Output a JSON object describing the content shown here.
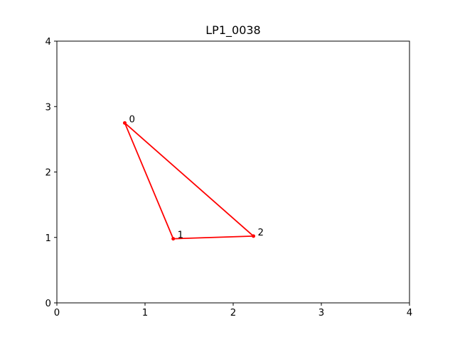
{
  "chart_data": {
    "type": "line",
    "title": "LP1_0038",
    "xlabel": "",
    "ylabel": "",
    "xlim": [
      0,
      4
    ],
    "ylim": [
      0,
      4
    ],
    "xticks": [
      "0",
      "1",
      "2",
      "3",
      "4"
    ],
    "yticks": [
      "0",
      "1",
      "2",
      "3",
      "4"
    ],
    "grid": false,
    "line_color": "#ff0000",
    "closed": true,
    "points": [
      {
        "label": "0",
        "x": 0.77,
        "y": 2.75
      },
      {
        "label": "1",
        "x": 1.32,
        "y": 0.98
      },
      {
        "label": "2",
        "x": 2.23,
        "y": 1.02
      }
    ]
  }
}
